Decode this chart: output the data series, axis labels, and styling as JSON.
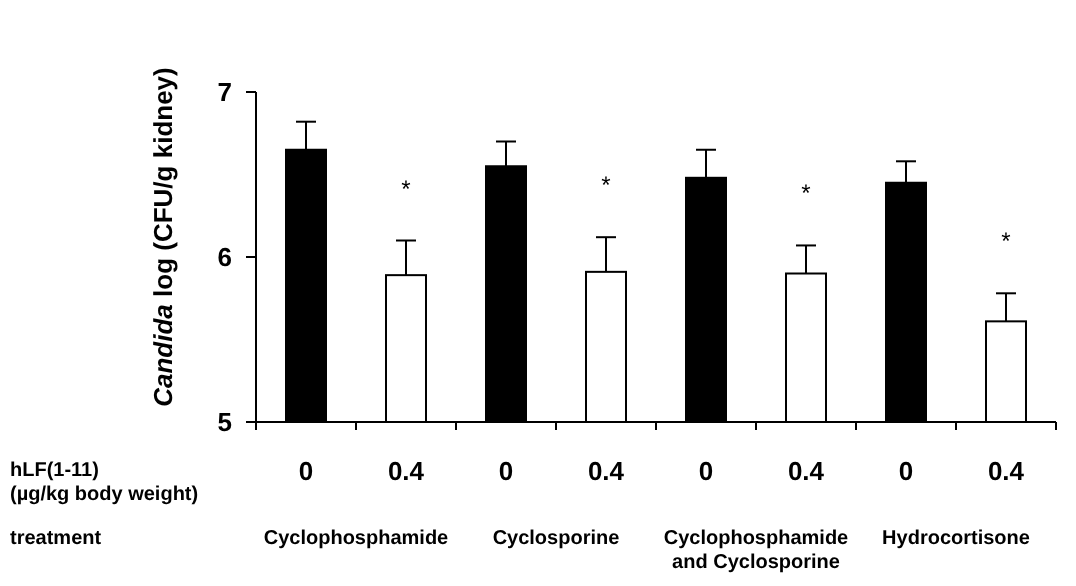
{
  "chart_data": {
    "type": "bar",
    "ylabel": "Candida log (CFU/g kidney)",
    "xlabel": "hLF(1-11) (µg/kg body weight)",
    "categories": [
      "0",
      "0.4",
      "0",
      "0.4",
      "0",
      "0.4",
      "0",
      "0.4"
    ],
    "values": [
      6.65,
      5.89,
      6.55,
      5.91,
      6.48,
      5.9,
      6.45,
      5.61
    ],
    "colors": [
      "#000000",
      "#ffffff",
      "#000000",
      "#ffffff",
      "#000000",
      "#ffffff",
      "#000000",
      "#ffffff"
    ],
    "errors": [
      0.17,
      0.21,
      0.15,
      0.21,
      0.17,
      0.17,
      0.13,
      0.17
    ],
    "value_labels": [
      null,
      "*",
      null,
      "*",
      null,
      "*",
      null,
      "*"
    ],
    "ylim": [
      5,
      7
    ],
    "yticks": [
      5,
      6,
      7
    ],
    "grid": false,
    "annotations": [
      "treatment",
      "Cyclophosphamide",
      "Cyclosporine",
      "Cyclophosphamide and Cyclosporine",
      "Hydrocortisone"
    ]
  }
}
